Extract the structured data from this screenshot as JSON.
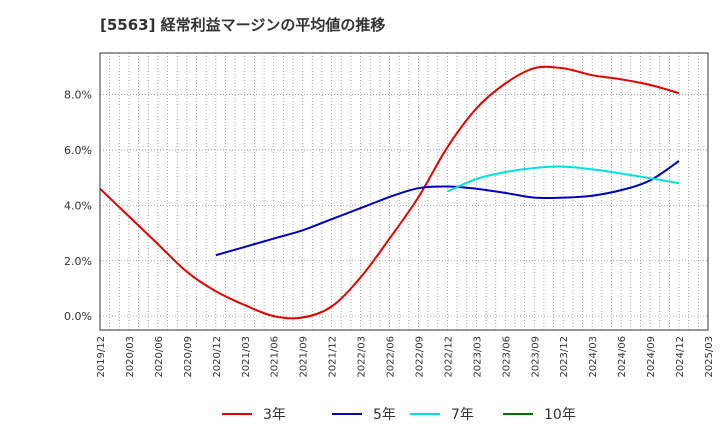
{
  "title": "[5563]  経常利益マージンの平均値の推移",
  "chart_data": {
    "type": "line",
    "y_ticks": [
      {
        "value": 0,
        "label": "0.0%"
      },
      {
        "value": 2,
        "label": "2.0%"
      },
      {
        "value": 4,
        "label": "4.0%"
      },
      {
        "value": 6,
        "label": "6.0%"
      },
      {
        "value": 8,
        "label": "8.0%"
      }
    ],
    "x_ticks": [
      "2019/12",
      "2020/03",
      "2020/06",
      "2020/09",
      "2020/12",
      "2021/03",
      "2021/06",
      "2021/09",
      "2021/12",
      "2022/03",
      "2022/06",
      "2022/09",
      "2022/12",
      "2023/03",
      "2023/06",
      "2023/09",
      "2023/12",
      "2024/03",
      "2024/06",
      "2024/09",
      "2024/12",
      "2025/03"
    ],
    "ylim": [
      -0.5,
      9.5
    ],
    "grid": true,
    "legend_position": "bottom",
    "series": [
      {
        "name": "3年",
        "color": "#e00000",
        "x": [
          "2019/12",
          "2020/03",
          "2020/06",
          "2020/09",
          "2020/12",
          "2021/03",
          "2021/06",
          "2021/09",
          "2021/12",
          "2022/03",
          "2022/06",
          "2022/09",
          "2022/12",
          "2023/03",
          "2023/06",
          "2023/09",
          "2023/12",
          "2024/03",
          "2024/06",
          "2024/09",
          "2024/12"
        ],
        "values": [
          4.6,
          3.6,
          2.6,
          1.6,
          0.9,
          0.4,
          0.0,
          -0.05,
          0.35,
          1.4,
          2.8,
          4.3,
          6.1,
          7.5,
          8.4,
          8.95,
          8.95,
          8.7,
          8.55,
          8.35,
          8.05
        ]
      },
      {
        "name": "5年",
        "color": "#0000c0",
        "x": [
          "2020/12",
          "2021/03",
          "2021/06",
          "2021/09",
          "2021/12",
          "2022/03",
          "2022/06",
          "2022/09",
          "2022/12",
          "2023/03",
          "2023/06",
          "2023/09",
          "2023/12",
          "2024/03",
          "2024/06",
          "2024/09",
          "2024/12"
        ],
        "values": [
          2.2,
          2.5,
          2.8,
          3.1,
          3.5,
          3.9,
          4.3,
          4.62,
          4.68,
          4.6,
          4.45,
          4.28,
          4.28,
          4.35,
          4.55,
          4.9,
          5.6
        ]
      },
      {
        "name": "7年",
        "color": "#00e0e0",
        "x": [
          "2022/12",
          "2023/03",
          "2023/06",
          "2023/09",
          "2023/12",
          "2024/03",
          "2024/06",
          "2024/09",
          "2024/12"
        ],
        "values": [
          4.5,
          4.95,
          5.2,
          5.35,
          5.4,
          5.3,
          5.15,
          4.98,
          4.8
        ]
      },
      {
        "name": "10年",
        "color": "#007000",
        "x": [],
        "values": []
      }
    ]
  }
}
